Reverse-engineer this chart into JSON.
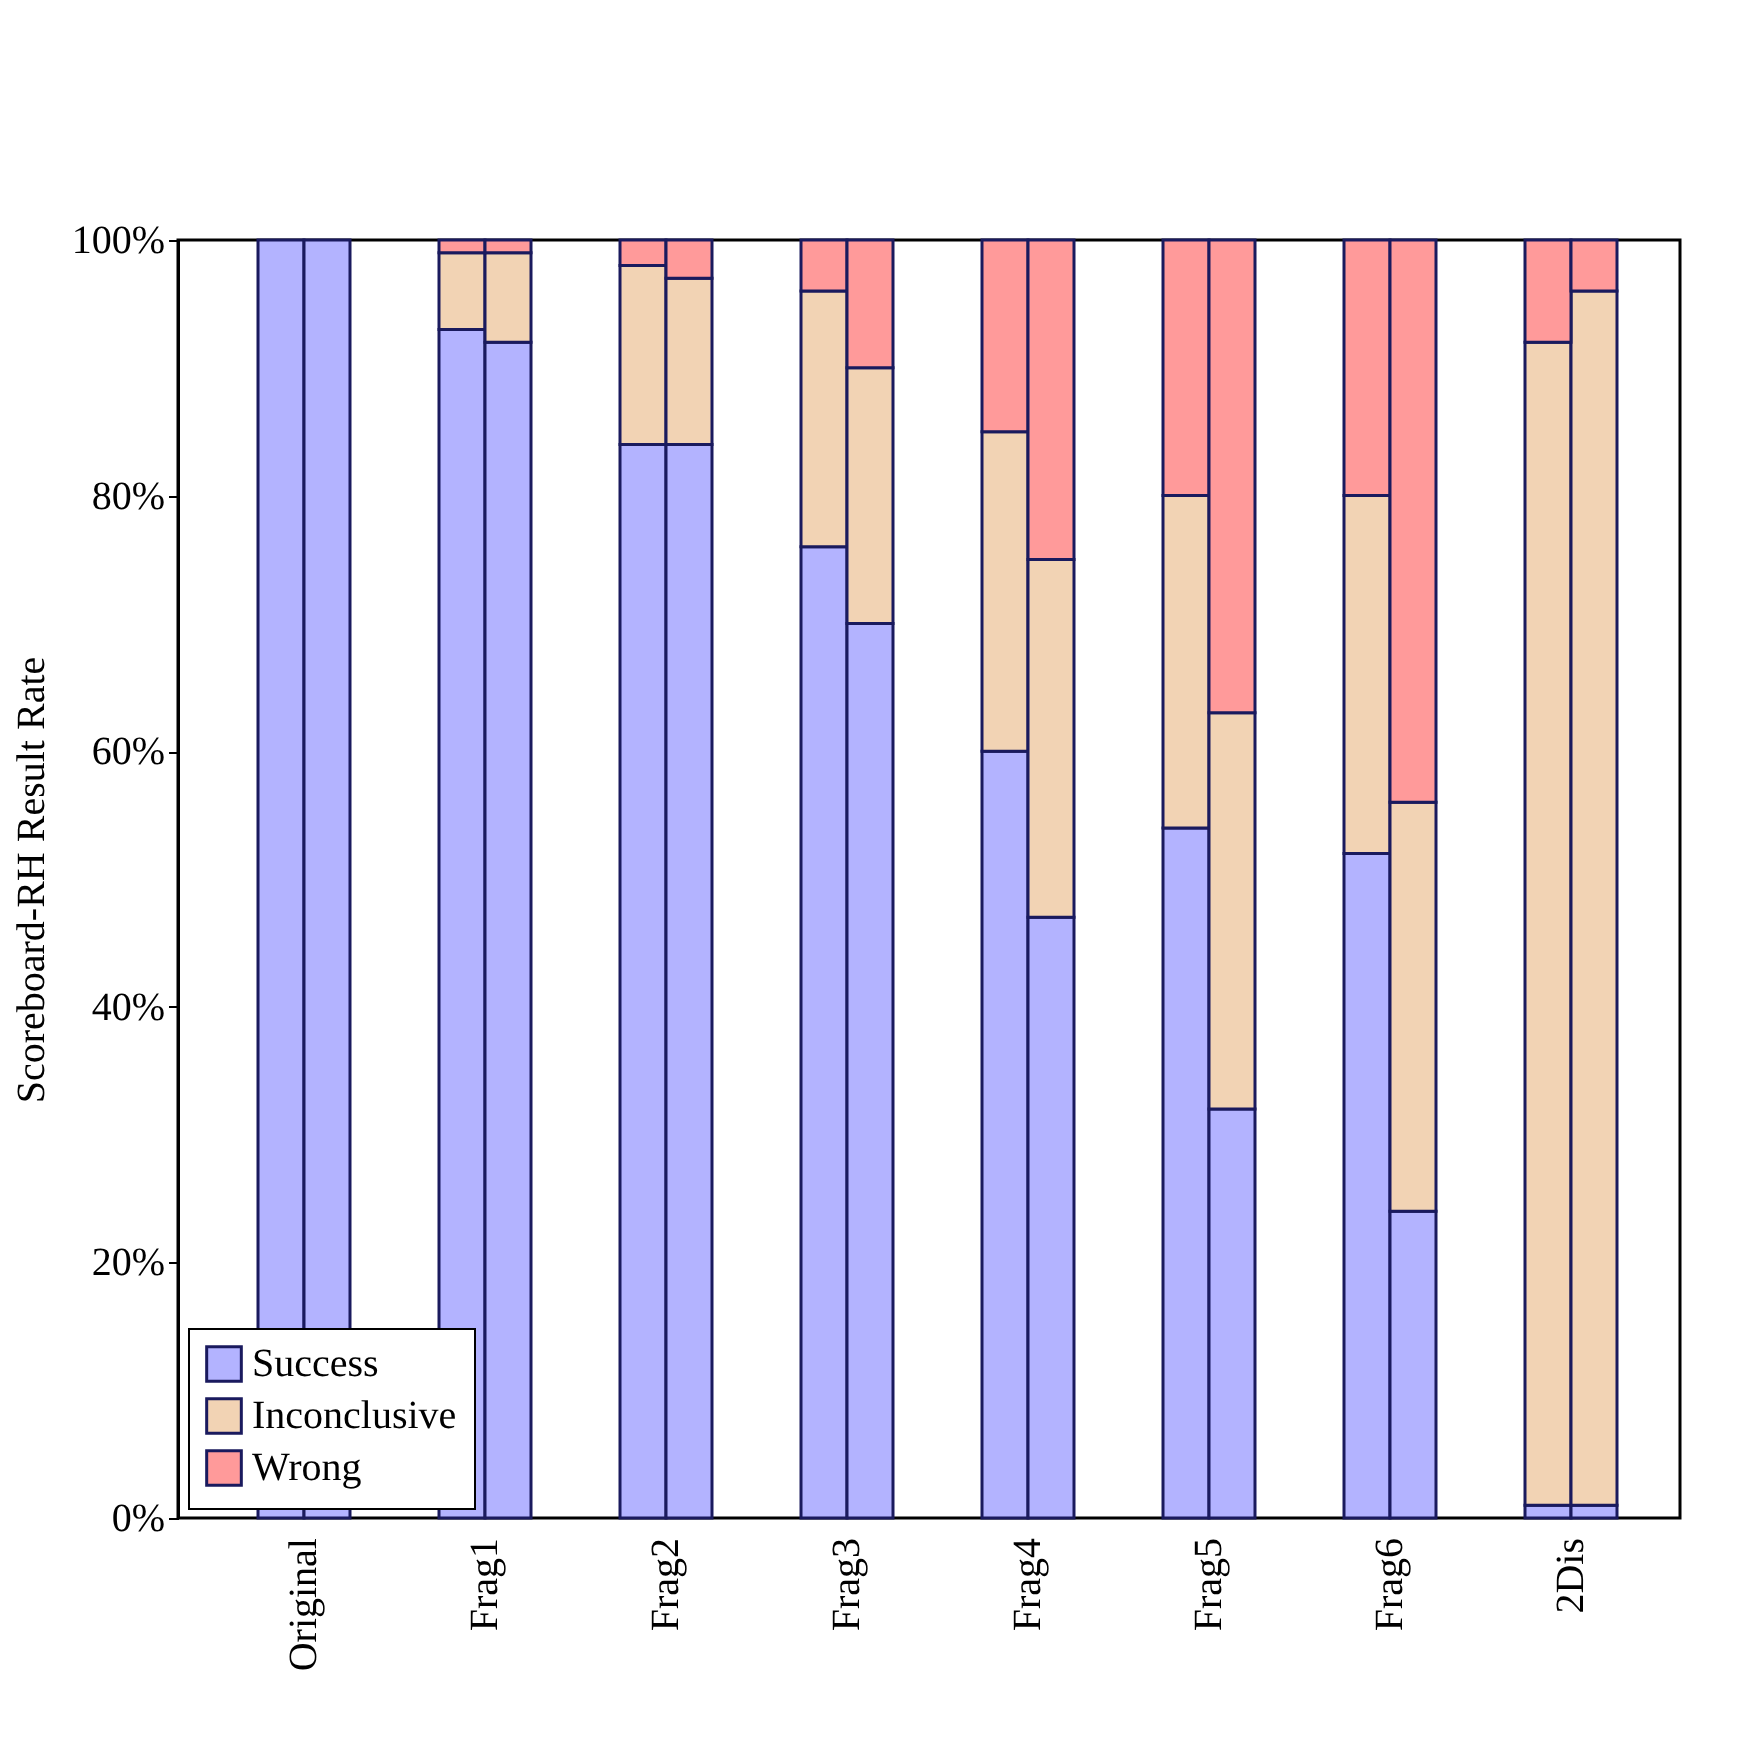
{
  "chart_data": {
    "type": "bar",
    "stacked": true,
    "ylabel": "Scoreboard-RH Result Rate",
    "categories": [
      null,
      null,
      null,
      null,
      null,
      null,
      null,
      null,
      null,
      null,
      null,
      null,
      null,
      null,
      null,
      null
    ],
    "annotations": [
      "Original",
      "Frag1",
      "Frag2",
      "Frag3",
      "Frag4",
      "Frag5",
      "Frag6",
      "2Dis"
    ],
    "series": [
      {
        "name": "Success",
        "color": "#b3b3ff",
        "values": [
          100,
          100,
          93,
          92,
          84,
          84,
          76,
          70,
          60,
          47,
          54,
          32,
          52,
          24,
          1,
          1
        ]
      },
      {
        "name": "Inconclusive",
        "color": "#f2d3b4",
        "values": [
          0,
          0,
          6,
          7,
          14,
          13,
          20,
          20,
          25,
          28,
          26,
          31,
          28,
          32,
          91,
          95
        ]
      },
      {
        "name": "Wrong",
        "color": "#ff9a9a",
        "values": [
          0,
          0,
          1,
          1,
          2,
          3,
          4,
          10,
          15,
          25,
          20,
          37,
          20,
          44,
          8,
          4
        ]
      }
    ],
    "ylim": [
      0,
      100
    ],
    "yticks": [
      {
        "value": 0,
        "label": "0%"
      },
      {
        "value": 20,
        "label": "20%"
      },
      {
        "value": 40,
        "label": "40%"
      },
      {
        "value": 60,
        "label": "60%"
      },
      {
        "value": 80,
        "label": "80%"
      },
      {
        "value": 100,
        "label": "100%"
      }
    ],
    "grid": false,
    "legend": "bottom left"
  }
}
